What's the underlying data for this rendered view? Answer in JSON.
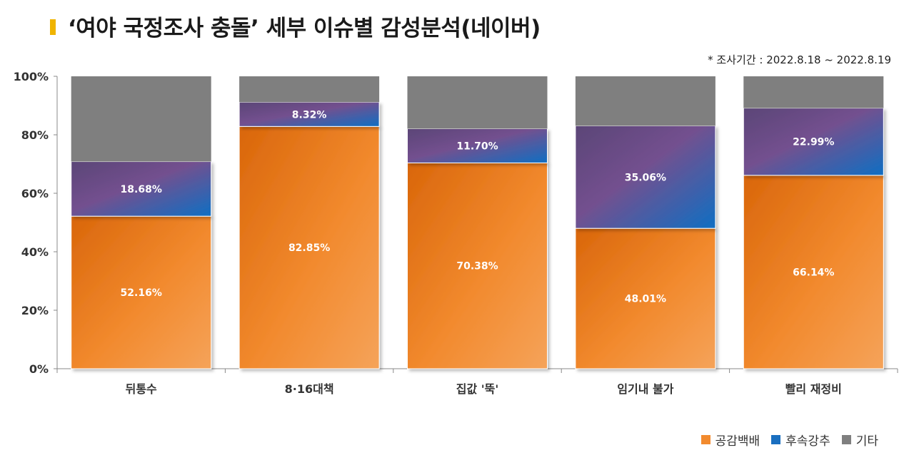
{
  "header": {
    "title": "‘여야 국정조사 충돌’ 세부 이슈별 감성분석(네이버)",
    "period": "* 조사기간 : 2022.8.18 ~ 2022.8.19"
  },
  "colors": {
    "positive": "#f28a2e",
    "negative": "#1a6fc0",
    "other": "#7f7f7f",
    "accent": "#f0b400"
  },
  "chart_data": {
    "type": "bar",
    "stacked": true,
    "categories": [
      "뒤통수",
      "8·16대책",
      "집값 '뚝'",
      "임기내 불가",
      "빨리 재정비"
    ],
    "series": [
      {
        "name": "공감백배",
        "values": [
          52.16,
          82.85,
          70.38,
          48.01,
          66.14
        ],
        "labels": [
          "52.16%",
          "82.85%",
          "70.38%",
          "48.01%",
          "66.14%"
        ]
      },
      {
        "name": "후속강추",
        "values": [
          18.68,
          8.32,
          11.7,
          35.06,
          22.99
        ],
        "labels": [
          "18.68%",
          "8.32%",
          "11.70%",
          "35.06%",
          "22.99%"
        ]
      },
      {
        "name": "기타",
        "values": [
          29.16,
          8.83,
          17.92,
          16.93,
          10.87
        ]
      }
    ],
    "yticks": [
      "0%",
      "20%",
      "40%",
      "60%",
      "80%",
      "100%"
    ],
    "ylim": [
      0,
      100
    ],
    "grid": false,
    "legend": "bottom-right"
  }
}
